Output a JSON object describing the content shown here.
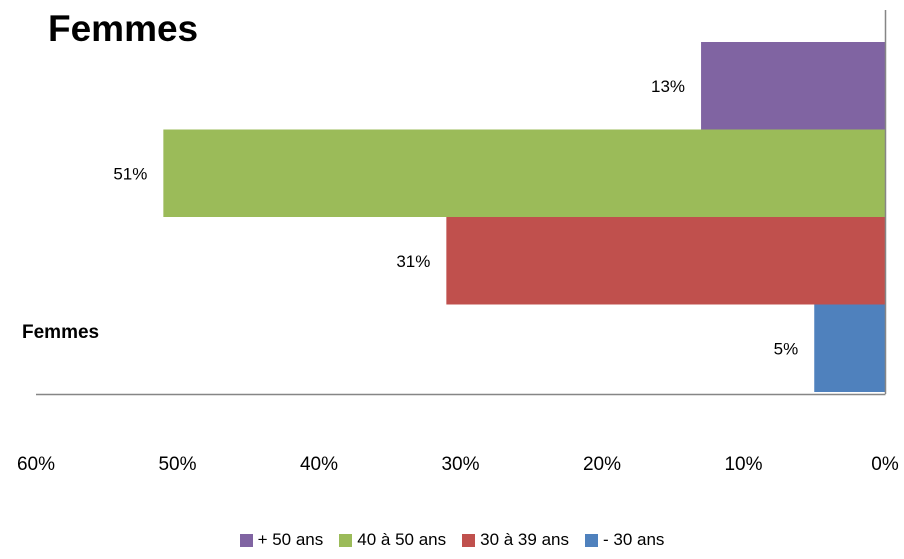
{
  "chart_data": {
    "type": "bar",
    "orientation": "horizontal",
    "x_axis_reversed": true,
    "title": "Femmes",
    "categories": [
      "Femmes"
    ],
    "xlim": [
      0,
      60
    ],
    "x_ticks": [
      "60%",
      "50%",
      "40%",
      "30%",
      "20%",
      "10%",
      "0%"
    ],
    "series": [
      {
        "name": "+ 50 ans",
        "values": [
          13
        ],
        "label": "13%",
        "color": "#8064A2"
      },
      {
        "name": "40 à 50 ans",
        "values": [
          51
        ],
        "label": "51%",
        "color": "#9BBB59"
      },
      {
        "name": "30 à 39 ans",
        "values": [
          31
        ],
        "label": "31%",
        "color": "#C0504D"
      },
      {
        "name": "- 30 ans",
        "values": [
          5
        ],
        "label": "5%",
        "color": "#4F81BD"
      }
    ],
    "grid": false,
    "legend_position": "bottom"
  }
}
